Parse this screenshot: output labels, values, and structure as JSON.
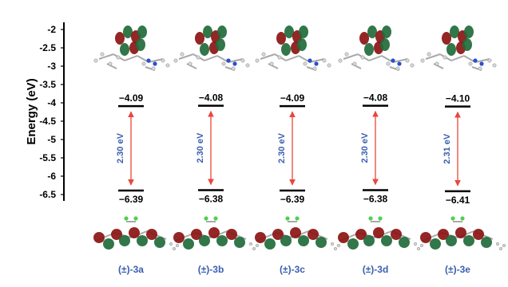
{
  "chart_data": {
    "type": "energy_level_diagram",
    "ylabel": "Energy (eV)",
    "yticks": [
      "-2",
      "-2.5",
      "-3",
      "-3.5",
      "-4",
      "-4.5",
      "-5",
      "-5.5",
      "-6",
      "-6.5"
    ],
    "ylim": [
      -6.6,
      -1.85
    ],
    "compounds": [
      {
        "label": "(±)-3a",
        "lumo": -4.09,
        "homo": -6.39,
        "lumo_label": "−4.09",
        "homo_label": "−6.39",
        "gap_label": "2.30 eV"
      },
      {
        "label": "(±)-3b",
        "lumo": -4.08,
        "homo": -6.38,
        "lumo_label": "−4.08",
        "homo_label": "−6.38",
        "gap_label": "2.30 eV"
      },
      {
        "label": "(±)-3c",
        "lumo": -4.09,
        "homo": -6.39,
        "lumo_label": "−4.09",
        "homo_label": "−6.39",
        "gap_label": "2.30 eV"
      },
      {
        "label": "(±)-3d",
        "lumo": -4.08,
        "homo": -6.38,
        "lumo_label": "−4.08",
        "homo_label": "−6.38",
        "gap_label": "2.30 eV"
      },
      {
        "label": "(±)-3e",
        "lumo": -4.1,
        "homo": -6.41,
        "lumo_label": "−4.10",
        "homo_label": "−6.41",
        "gap_label": "2.31 eV"
      }
    ],
    "colors": {
      "arrow": "#e8473c",
      "gap_text": "#3a5fae",
      "orbital_red": "#8b1414",
      "orbital_green": "#1f6b3a",
      "atom_c": "#8a8a8a",
      "atom_n": "#2a4fd0",
      "atom_cl": "#4fd04f"
    }
  }
}
